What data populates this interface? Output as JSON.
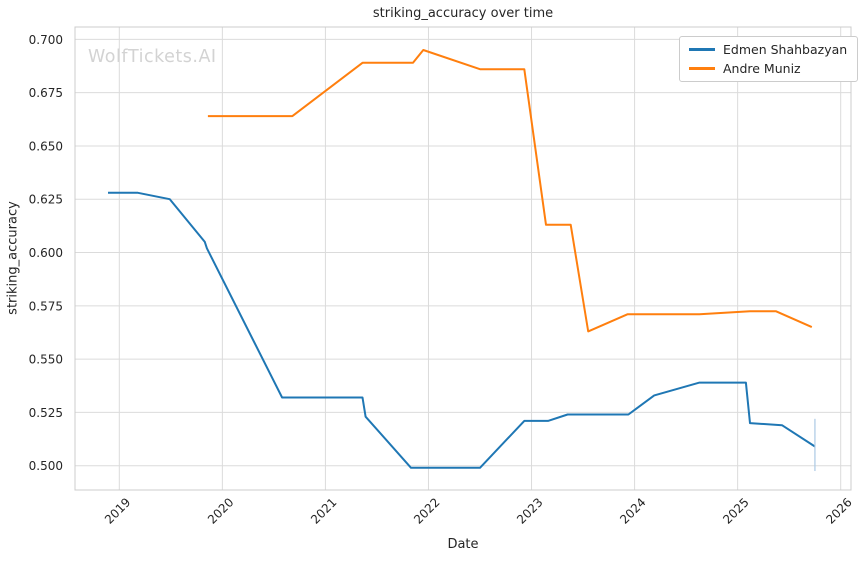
{
  "watermark": "WolfTickets.AI",
  "chart_data": {
    "type": "line",
    "title": "striking_accuracy over time",
    "xlabel": "Date",
    "ylabel": "striking_accuracy",
    "xlim": [
      2018.57,
      2026.1
    ],
    "ylim": [
      0.4886,
      0.7058
    ],
    "x_ticks": [
      2019,
      2020,
      2021,
      2022,
      2023,
      2024,
      2025,
      2026
    ],
    "x_tick_labels": [
      "2019",
      "2020",
      "2021",
      "2022",
      "2023",
      "2024",
      "2025",
      "2026"
    ],
    "y_ticks": [
      0.5,
      0.525,
      0.55,
      0.575,
      0.6,
      0.625,
      0.65,
      0.675,
      0.7
    ],
    "y_tick_labels": [
      "0.500",
      "0.525",
      "0.550",
      "0.575",
      "0.600",
      "0.625",
      "0.650",
      "0.675",
      "0.700"
    ],
    "grid": true,
    "legend_position": "upper right",
    "series": [
      {
        "name": "Edmen Shahbazyan",
        "color": "#1f77b4",
        "points": [
          [
            2018.89,
            0.628
          ],
          [
            2019.18,
            0.628
          ],
          [
            2019.49,
            0.625
          ],
          [
            2019.83,
            0.605
          ],
          [
            2019.85,
            0.602
          ],
          [
            2020.58,
            0.532
          ],
          [
            2021.36,
            0.532
          ],
          [
            2021.39,
            0.523
          ],
          [
            2021.83,
            0.499
          ],
          [
            2022.5,
            0.499
          ],
          [
            2022.93,
            0.521
          ],
          [
            2023.16,
            0.521
          ],
          [
            2023.35,
            0.524
          ],
          [
            2023.94,
            0.524
          ],
          [
            2024.19,
            0.533
          ],
          [
            2024.63,
            0.539
          ],
          [
            2025.08,
            0.539
          ],
          [
            2025.12,
            0.52
          ],
          [
            2025.43,
            0.519
          ],
          [
            2025.75,
            0.509
          ]
        ]
      },
      {
        "name": "Andre Muniz",
        "color": "#ff7f0e",
        "points": [
          [
            2019.86,
            0.664
          ],
          [
            2020.68,
            0.664
          ],
          [
            2021.36,
            0.689
          ],
          [
            2021.85,
            0.689
          ],
          [
            2021.95,
            0.695
          ],
          [
            2022.5,
            0.686
          ],
          [
            2022.93,
            0.686
          ],
          [
            2023.14,
            0.613
          ],
          [
            2023.38,
            0.613
          ],
          [
            2023.55,
            0.563
          ],
          [
            2023.93,
            0.571
          ],
          [
            2024.63,
            0.571
          ],
          [
            2025.12,
            0.5725
          ],
          [
            2025.37,
            0.5725
          ],
          [
            2025.72,
            0.565
          ]
        ]
      }
    ],
    "error_bar": {
      "series": "Edmen Shahbazyan",
      "x": 2025.75,
      "y_low": 0.4975,
      "y_high": 0.522,
      "color": "#abc9e4"
    },
    "colors": {
      "grid": "#dbdbdb",
      "spine": "#cccccc",
      "text": "#262626",
      "watermark": "#d3d3d3"
    }
  }
}
